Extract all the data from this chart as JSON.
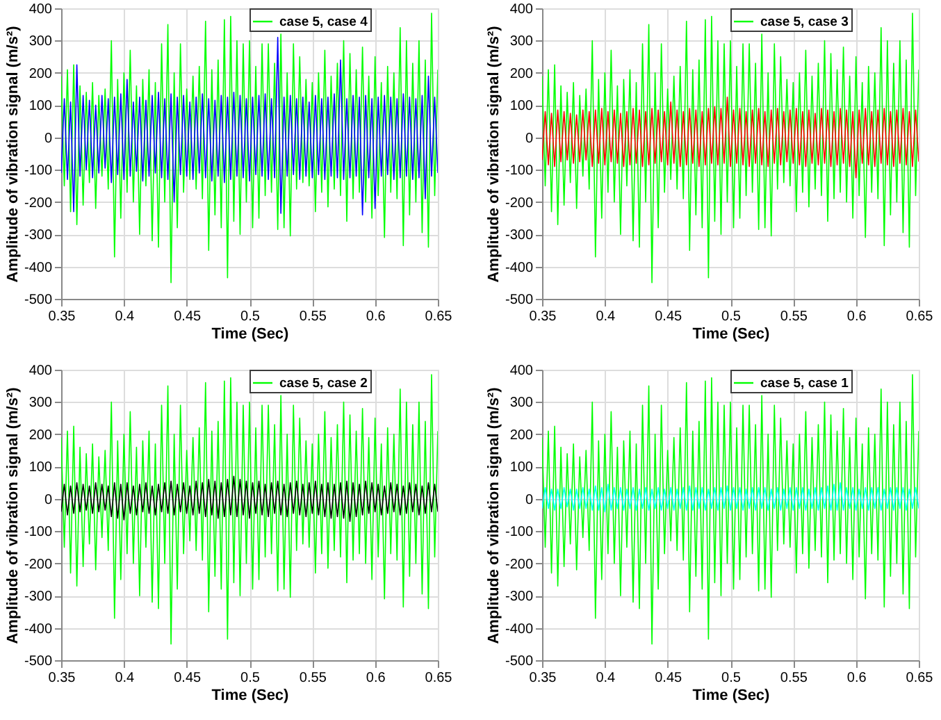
{
  "chart_data": [
    {
      "type": "line",
      "xlabel": "Time (Sec)",
      "ylabel": "Amplitude of vibration signal (m/s²)",
      "xlim": [
        0.35,
        0.65
      ],
      "xticks": [
        0.35,
        0.4,
        0.45,
        0.5,
        0.55,
        0.6,
        0.65
      ],
      "ylim": [
        -500,
        400
      ],
      "yticks": [
        -500,
        -400,
        -300,
        -200,
        -100,
        0,
        100,
        200,
        300,
        400
      ],
      "grid": true,
      "legend": "top right",
      "x": [
        0.35,
        0.3525,
        0.355,
        0.3575,
        0.36,
        0.3625,
        0.365,
        0.3675,
        0.37,
        0.3725,
        0.375,
        0.3775,
        0.38,
        0.3825,
        0.385,
        0.3875,
        0.39,
        0.3925,
        0.395,
        0.3975,
        0.4,
        0.4025,
        0.405,
        0.4075,
        0.41,
        0.4125,
        0.415,
        0.4175,
        0.42,
        0.4225,
        0.425,
        0.4275,
        0.43,
        0.4325,
        0.435,
        0.4375,
        0.44,
        0.4425,
        0.445,
        0.4475,
        0.45,
        0.4525,
        0.455,
        0.4575,
        0.46,
        0.4625,
        0.465,
        0.4675,
        0.47,
        0.4725,
        0.475,
        0.4775,
        0.48,
        0.4825,
        0.485,
        0.4875,
        0.49,
        0.4925,
        0.495,
        0.4975,
        0.5,
        0.5025,
        0.505,
        0.5075,
        0.51,
        0.5125,
        0.515,
        0.5175,
        0.52,
        0.5225,
        0.525,
        0.5275,
        0.53,
        0.5325,
        0.535,
        0.5375,
        0.54,
        0.5425,
        0.545,
        0.5475,
        0.55,
        0.5525,
        0.555,
        0.5575,
        0.56,
        0.5625,
        0.565,
        0.5675,
        0.57,
        0.5725,
        0.575,
        0.5775,
        0.58,
        0.5825,
        0.585,
        0.5875,
        0.59,
        0.5925,
        0.595,
        0.5975,
        0.6,
        0.6025,
        0.605,
        0.6075,
        0.61,
        0.6125,
        0.615,
        0.6175,
        0.62,
        0.6225,
        0.625,
        0.6275,
        0.63,
        0.6325,
        0.635,
        0.6375,
        0.64,
        0.6425,
        0.645,
        0.6475,
        0.65
      ],
      "series": [
        {
          "name": "case 5, case 4",
          "color": "#00ff00",
          "values": [
            190,
            -150,
            210,
            -230,
            225,
            -270,
            160,
            -210,
            140,
            -140,
            170,
            -220,
            130,
            -120,
            150,
            -160,
            300,
            -370,
            180,
            -250,
            200,
            -170,
            270,
            -200,
            160,
            -300,
            180,
            -150,
            210,
            -320,
            170,
            -340,
            290,
            -200,
            350,
            -450,
            200,
            -280,
            290,
            -170,
            150,
            -130,
            190,
            -160,
            220,
            -190,
            360,
            -350,
            210,
            -240,
            240,
            -280,
            365,
            -435,
            375,
            -260,
            300,
            -300,
            290,
            -200,
            300,
            -280,
            220,
            -250,
            290,
            -180,
            290,
            -170,
            230,
            -285,
            320,
            -280,
            200,
            -305,
            290,
            -160,
            250,
            -140,
            180,
            -150,
            170,
            -230,
            200,
            -170,
            270,
            -215,
            190,
            -160,
            230,
            -180,
            300,
            -260,
            260,
            -190,
            210,
            -170,
            280,
            -200,
            190,
            -250,
            250,
            -180,
            170,
            -310,
            220,
            -170,
            200,
            -190,
            340,
            -335,
            300,
            -240,
            230,
            -200,
            300,
            -295,
            240,
            -340,
            385,
            -180,
            210
          ]
        },
        {
          "color": "#0000ff",
          "values": [
            -110,
            120,
            -130,
            110,
            -230,
            225,
            -120,
            130,
            -100,
            115,
            -125,
            100,
            -110,
            130,
            -95,
            120,
            -140,
            125,
            -115,
            135,
            -130,
            180,
            -120,
            110,
            -105,
            125,
            -135,
            115,
            -120,
            130,
            -110,
            140,
            -125,
            120,
            -130,
            135,
            -200,
            125,
            -115,
            130,
            -120,
            110,
            -130,
            125,
            -110,
            135,
            -125,
            120,
            -135,
            115,
            -120,
            130,
            -140,
            125,
            -130,
            140,
            -120,
            130,
            -125,
            120,
            -135,
            125,
            -115,
            130,
            -120,
            135,
            -130,
            120,
            -125,
            310,
            -235,
            125,
            -120,
            130,
            -115,
            120,
            -130,
            125,
            -120,
            110,
            -125,
            130,
            -115,
            120,
            -130,
            125,
            -120,
            135,
            -125,
            240,
            -130,
            120,
            -125,
            130,
            -120,
            125,
            -240,
            130,
            -125,
            120,
            -220,
            125,
            -120,
            130,
            -115,
            125,
            -130,
            120,
            -125,
            135,
            -120,
            125,
            -130,
            120,
            -125,
            130,
            -190,
            190,
            -120,
            125,
            -110
          ]
        }
      ]
    },
    {
      "type": "line",
      "xlabel": "Time (Sec)",
      "ylabel": "Amplitude of vibration signal (m/s²)",
      "xlim": [
        0.35,
        0.65
      ],
      "xticks": [
        0.35,
        0.4,
        0.45,
        0.5,
        0.55,
        0.6,
        0.65
      ],
      "ylim": [
        -500,
        400
      ],
      "yticks": [
        -500,
        -400,
        -300,
        -200,
        -100,
        0,
        100,
        200,
        300,
        400
      ],
      "grid": true,
      "legend": "top right",
      "x": [
        0.35,
        0.3525,
        0.355,
        0.3575,
        0.36,
        0.3625,
        0.365,
        0.3675,
        0.37,
        0.3725,
        0.375,
        0.3775,
        0.38,
        0.3825,
        0.385,
        0.3875,
        0.39,
        0.3925,
        0.395,
        0.3975,
        0.4,
        0.4025,
        0.405,
        0.4075,
        0.41,
        0.4125,
        0.415,
        0.4175,
        0.42,
        0.4225,
        0.425,
        0.4275,
        0.43,
        0.4325,
        0.435,
        0.4375,
        0.44,
        0.4425,
        0.445,
        0.4475,
        0.45,
        0.4525,
        0.455,
        0.4575,
        0.46,
        0.4625,
        0.465,
        0.4675,
        0.47,
        0.4725,
        0.475,
        0.4775,
        0.48,
        0.4825,
        0.485,
        0.4875,
        0.49,
        0.4925,
        0.495,
        0.4975,
        0.5,
        0.5025,
        0.505,
        0.5075,
        0.51,
        0.5125,
        0.515,
        0.5175,
        0.52,
        0.5225,
        0.525,
        0.5275,
        0.53,
        0.5325,
        0.535,
        0.5375,
        0.54,
        0.5425,
        0.545,
        0.5475,
        0.55,
        0.5525,
        0.555,
        0.5575,
        0.56,
        0.5625,
        0.565,
        0.5675,
        0.57,
        0.5725,
        0.575,
        0.5775,
        0.58,
        0.5825,
        0.585,
        0.5875,
        0.59,
        0.5925,
        0.595,
        0.5975,
        0.6,
        0.6025,
        0.605,
        0.6075,
        0.61,
        0.6125,
        0.615,
        0.6175,
        0.62,
        0.6225,
        0.625,
        0.6275,
        0.63,
        0.6325,
        0.635,
        0.6375,
        0.64,
        0.6425,
        0.645,
        0.6475,
        0.65
      ],
      "series": [
        {
          "name": "case 5, case 3",
          "color": "#00ff00",
          "values": [
            190,
            -150,
            210,
            -230,
            225,
            -270,
            160,
            -210,
            140,
            -140,
            170,
            -220,
            130,
            -120,
            150,
            -160,
            300,
            -370,
            180,
            -250,
            200,
            -170,
            270,
            -200,
            160,
            -300,
            180,
            -150,
            210,
            -320,
            170,
            -340,
            290,
            -200,
            350,
            -450,
            200,
            -280,
            290,
            -170,
            150,
            -130,
            190,
            -160,
            220,
            -190,
            360,
            -350,
            210,
            -240,
            240,
            -280,
            365,
            -435,
            375,
            -260,
            300,
            -300,
            290,
            -200,
            300,
            -280,
            220,
            -250,
            290,
            -180,
            290,
            -170,
            230,
            -285,
            320,
            -280,
            200,
            -305,
            290,
            -160,
            250,
            -140,
            180,
            -150,
            170,
            -230,
            200,
            -170,
            270,
            -215,
            190,
            -160,
            230,
            -180,
            300,
            -260,
            260,
            -190,
            210,
            -170,
            280,
            -200,
            190,
            -250,
            250,
            -180,
            170,
            -310,
            220,
            -170,
            200,
            -190,
            340,
            -335,
            300,
            -240,
            230,
            -200,
            300,
            -295,
            240,
            -340,
            385,
            -180,
            210
          ]
        },
        {
          "color": "#ff0000",
          "values": [
            -70,
            80,
            -85,
            75,
            -90,
            85,
            -75,
            80,
            -70,
            75,
            -80,
            70,
            -75,
            85,
            -70,
            80,
            -90,
            85,
            -80,
            90,
            -85,
            80,
            -75,
            85,
            -80,
            75,
            -90,
            80,
            -85,
            90,
            -80,
            85,
            -90,
            80,
            -85,
            90,
            -80,
            85,
            -75,
            80,
            -85,
            110,
            -80,
            85,
            -90,
            80,
            -85,
            90,
            -80,
            85,
            -90,
            80,
            -85,
            90,
            -80,
            95,
            -85,
            90,
            -80,
            125,
            -90,
            85,
            -80,
            90,
            -85,
            80,
            -90,
            85,
            -80,
            90,
            -85,
            80,
            -90,
            85,
            -80,
            90,
            -85,
            80,
            -75,
            85,
            -80,
            90,
            -85,
            80,
            -90,
            85,
            -80,
            75,
            -85,
            90,
            -80,
            85,
            -90,
            80,
            -85,
            90,
            -80,
            85,
            -90,
            80,
            -125,
            85,
            -80,
            90,
            -85,
            80,
            -90,
            85,
            -80,
            90,
            -85,
            80,
            -90,
            85,
            -80,
            90,
            -85,
            80,
            -90,
            85,
            -75
          ]
        }
      ]
    },
    {
      "type": "line",
      "xlabel": "Time (Sec)",
      "ylabel": "Amplitude of vibration signal (m/s²)",
      "xlim": [
        0.35,
        0.65
      ],
      "xticks": [
        0.35,
        0.4,
        0.45,
        0.5,
        0.55,
        0.6,
        0.65
      ],
      "ylim": [
        -500,
        400
      ],
      "yticks": [
        -500,
        -400,
        -300,
        -200,
        -100,
        0,
        100,
        200,
        300,
        400
      ],
      "grid": true,
      "legend": "top right",
      "x": [
        0.35,
        0.3525,
        0.355,
        0.3575,
        0.36,
        0.3625,
        0.365,
        0.3675,
        0.37,
        0.3725,
        0.375,
        0.3775,
        0.38,
        0.3825,
        0.385,
        0.3875,
        0.39,
        0.3925,
        0.395,
        0.3975,
        0.4,
        0.4025,
        0.405,
        0.4075,
        0.41,
        0.4125,
        0.415,
        0.4175,
        0.42,
        0.4225,
        0.425,
        0.4275,
        0.43,
        0.4325,
        0.435,
        0.4375,
        0.44,
        0.4425,
        0.445,
        0.4475,
        0.45,
        0.4525,
        0.455,
        0.4575,
        0.46,
        0.4625,
        0.465,
        0.4675,
        0.47,
        0.4725,
        0.475,
        0.4775,
        0.48,
        0.4825,
        0.485,
        0.4875,
        0.49,
        0.4925,
        0.495,
        0.4975,
        0.5,
        0.5025,
        0.505,
        0.5075,
        0.51,
        0.5125,
        0.515,
        0.5175,
        0.52,
        0.5225,
        0.525,
        0.5275,
        0.53,
        0.5325,
        0.535,
        0.5375,
        0.54,
        0.5425,
        0.545,
        0.5475,
        0.55,
        0.5525,
        0.555,
        0.5575,
        0.56,
        0.5625,
        0.565,
        0.5675,
        0.57,
        0.5725,
        0.575,
        0.5775,
        0.58,
        0.5825,
        0.585,
        0.5875,
        0.59,
        0.5925,
        0.595,
        0.5975,
        0.6,
        0.6025,
        0.605,
        0.6075,
        0.61,
        0.6125,
        0.615,
        0.6175,
        0.62,
        0.6225,
        0.625,
        0.6275,
        0.63,
        0.6325,
        0.635,
        0.6375,
        0.64,
        0.6425,
        0.645,
        0.6475,
        0.65
      ],
      "series": [
        {
          "name": "case 5, case 2",
          "color": "#00ff00",
          "values": [
            190,
            -150,
            210,
            -230,
            225,
            -270,
            160,
            -210,
            140,
            -140,
            170,
            -220,
            130,
            -120,
            150,
            -160,
            300,
            -370,
            180,
            -250,
            200,
            -170,
            270,
            -200,
            160,
            -300,
            180,
            -150,
            210,
            -320,
            170,
            -340,
            290,
            -200,
            350,
            -450,
            200,
            -280,
            290,
            -170,
            150,
            -130,
            190,
            -160,
            220,
            -190,
            360,
            -350,
            210,
            -240,
            240,
            -280,
            365,
            -435,
            375,
            -260,
            300,
            -300,
            290,
            -200,
            300,
            -280,
            220,
            -250,
            290,
            -180,
            290,
            -170,
            230,
            -285,
            320,
            -280,
            200,
            -305,
            290,
            -160,
            250,
            -140,
            180,
            -150,
            170,
            -230,
            200,
            -170,
            270,
            -215,
            190,
            -160,
            230,
            -180,
            300,
            -260,
            260,
            -190,
            210,
            -170,
            280,
            -200,
            190,
            -250,
            250,
            -180,
            170,
            -310,
            220,
            -170,
            200,
            -190,
            340,
            -335,
            300,
            -240,
            230,
            -200,
            300,
            -295,
            240,
            -340,
            385,
            -180,
            210
          ]
        },
        {
          "color": "#000000",
          "values": [
            -40,
            45,
            -50,
            40,
            -45,
            50,
            -40,
            45,
            -35,
            40,
            -45,
            50,
            -40,
            45,
            -35,
            40,
            -55,
            50,
            -60,
            45,
            -65,
            50,
            -45,
            40,
            -50,
            45,
            -40,
            50,
            -45,
            40,
            -50,
            45,
            -40,
            50,
            -45,
            55,
            -50,
            45,
            -40,
            50,
            -45,
            40,
            -50,
            55,
            -45,
            50,
            -55,
            60,
            -50,
            55,
            -60,
            50,
            -55,
            60,
            -50,
            70,
            -55,
            60,
            -50,
            55,
            -60,
            50,
            -45,
            55,
            -50,
            45,
            -55,
            50,
            -45,
            55,
            -50,
            45,
            -55,
            50,
            -45,
            55,
            -50,
            45,
            -55,
            50,
            -45,
            55,
            -50,
            45,
            -55,
            50,
            -60,
            45,
            -55,
            50,
            -60,
            55,
            -70,
            50,
            -55,
            45,
            -50,
            55,
            -45,
            50,
            -40,
            45,
            -50,
            40,
            -45,
            50,
            -40,
            45,
            -50,
            40,
            -45,
            50,
            -40,
            45,
            -50,
            40,
            -45,
            50,
            -40,
            45,
            -40
          ]
        }
      ]
    },
    {
      "type": "line",
      "xlabel": "Time (Sec)",
      "ylabel": "Amplitude of vibration signal (m/s²)",
      "xlim": [
        0.35,
        0.65
      ],
      "xticks": [
        0.35,
        0.4,
        0.45,
        0.5,
        0.55,
        0.6,
        0.65
      ],
      "ylim": [
        -500,
        400
      ],
      "yticks": [
        -500,
        -400,
        -300,
        -200,
        -100,
        0,
        100,
        200,
        300,
        400
      ],
      "grid": true,
      "legend": "top right",
      "x": [
        0.35,
        0.3525,
        0.355,
        0.3575,
        0.36,
        0.3625,
        0.365,
        0.3675,
        0.37,
        0.3725,
        0.375,
        0.3775,
        0.38,
        0.3825,
        0.385,
        0.3875,
        0.39,
        0.3925,
        0.395,
        0.3975,
        0.4,
        0.4025,
        0.405,
        0.4075,
        0.41,
        0.4125,
        0.415,
        0.4175,
        0.42,
        0.4225,
        0.425,
        0.4275,
        0.43,
        0.4325,
        0.435,
        0.4375,
        0.44,
        0.4425,
        0.445,
        0.4475,
        0.45,
        0.4525,
        0.455,
        0.4575,
        0.46,
        0.4625,
        0.465,
        0.4675,
        0.47,
        0.4725,
        0.475,
        0.4775,
        0.48,
        0.4825,
        0.485,
        0.4875,
        0.49,
        0.4925,
        0.495,
        0.4975,
        0.5,
        0.5025,
        0.505,
        0.5075,
        0.51,
        0.5125,
        0.515,
        0.5175,
        0.52,
        0.5225,
        0.525,
        0.5275,
        0.53,
        0.5325,
        0.535,
        0.5375,
        0.54,
        0.5425,
        0.545,
        0.5475,
        0.55,
        0.5525,
        0.555,
        0.5575,
        0.56,
        0.5625,
        0.565,
        0.5675,
        0.57,
        0.5725,
        0.575,
        0.5775,
        0.58,
        0.5825,
        0.585,
        0.5875,
        0.59,
        0.5925,
        0.595,
        0.5975,
        0.6,
        0.6025,
        0.605,
        0.6075,
        0.61,
        0.6125,
        0.615,
        0.6175,
        0.62,
        0.6225,
        0.625,
        0.6275,
        0.63,
        0.6325,
        0.635,
        0.6375,
        0.64,
        0.6425,
        0.645,
        0.6475,
        0.65
      ],
      "series": [
        {
          "name": "case 5, case 1",
          "color": "#00ff00",
          "values": [
            190,
            -150,
            210,
            -230,
            225,
            -270,
            160,
            -210,
            140,
            -140,
            170,
            -220,
            130,
            -120,
            150,
            -160,
            300,
            -370,
            180,
            -250,
            200,
            -170,
            270,
            -200,
            160,
            -300,
            180,
            -150,
            210,
            -320,
            170,
            -340,
            290,
            -200,
            350,
            -450,
            200,
            -280,
            290,
            -170,
            150,
            -130,
            190,
            -160,
            220,
            -190,
            360,
            -350,
            210,
            -240,
            240,
            -280,
            365,
            -435,
            375,
            -260,
            300,
            -300,
            290,
            -200,
            300,
            -280,
            220,
            -250,
            290,
            -180,
            290,
            -170,
            230,
            -285,
            320,
            -280,
            200,
            -305,
            290,
            -160,
            250,
            -140,
            180,
            -150,
            170,
            -230,
            200,
            -170,
            270,
            -215,
            190,
            -160,
            230,
            -180,
            300,
            -260,
            260,
            -190,
            210,
            -170,
            280,
            -200,
            190,
            -250,
            250,
            -180,
            170,
            -310,
            220,
            -170,
            200,
            -190,
            340,
            -335,
            300,
            -240,
            230,
            -200,
            300,
            -295,
            240,
            -340,
            385,
            -180,
            210
          ]
        },
        {
          "color": "#00ffff",
          "values": [
            -30,
            35,
            -30,
            30,
            -35,
            30,
            -30,
            35,
            -25,
            30,
            -35,
            30,
            -30,
            35,
            -30,
            30,
            -35,
            40,
            -35,
            35,
            -40,
            45,
            -35,
            35,
            -30,
            35,
            -35,
            30,
            -30,
            35,
            -35,
            30,
            -30,
            35,
            -35,
            30,
            -30,
            35,
            -35,
            30,
            -30,
            35,
            -35,
            30,
            -30,
            35,
            -35,
            40,
            -35,
            35,
            -30,
            35,
            -35,
            30,
            -30,
            35,
            -35,
            35,
            -30,
            40,
            -35,
            35,
            -30,
            35,
            -35,
            30,
            -30,
            35,
            -35,
            35,
            -30,
            35,
            -35,
            30,
            -30,
            35,
            -35,
            30,
            -30,
            35,
            -35,
            35,
            -30,
            35,
            -35,
            30,
            -30,
            35,
            -35,
            35,
            -30,
            40,
            -35,
            45,
            -35,
            50,
            -35,
            35,
            -30,
            35,
            -35,
            30,
            -30,
            35,
            -35,
            35,
            -30,
            35,
            -35,
            30,
            -30,
            35,
            -35,
            35,
            -30,
            35,
            -35,
            30,
            -30,
            35,
            -30
          ]
        }
      ]
    }
  ]
}
